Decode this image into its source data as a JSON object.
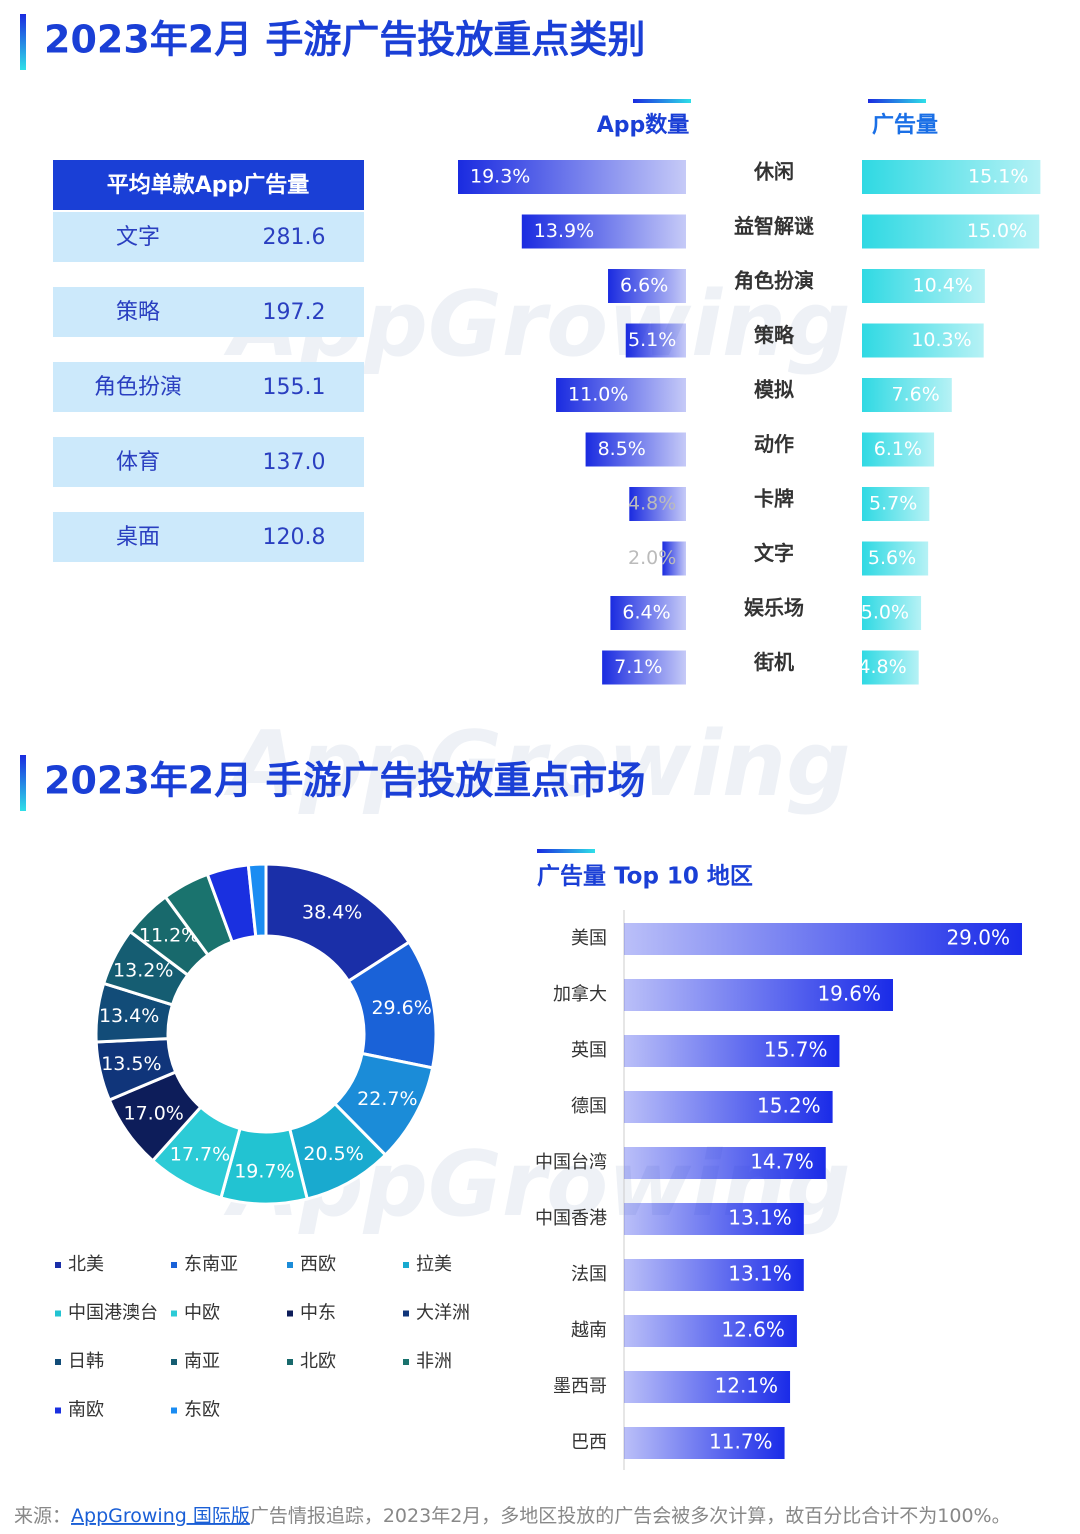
{
  "sections": [
    {
      "title": "2023年2月 手游广告投放重点类别"
    },
    {
      "title": "2023年2月 手游广告投放重点市场"
    }
  ],
  "watermark": "AppGrowing",
  "table": {
    "header": "平均单款App广告量",
    "rows": [
      [
        "文字",
        "281.6"
      ],
      [
        "策略",
        "197.2"
      ],
      [
        "角色扮演",
        "155.1"
      ],
      [
        "体育",
        "137.0"
      ],
      [
        "桌面",
        "120.8"
      ]
    ]
  },
  "chart_data": [
    {
      "type": "butterfly",
      "categories": [
        "休闲",
        "益智解谜",
        "角色扮演",
        "策略",
        "模拟",
        "动作",
        "卡牌",
        "文字",
        "娱乐场",
        "街机"
      ],
      "series": [
        {
          "name": "App数量",
          "color": "#1a2be0",
          "values": [
            19.3,
            13.9,
            6.6,
            5.1,
            11.0,
            8.5,
            4.8,
            2.0,
            6.4,
            7.1
          ],
          "value_labels": [
            "19.3%",
            "13.9%",
            "6.6%",
            "5.1%",
            "11.0%",
            "8.5%",
            "4.8%",
            "2.0%",
            "6.4%",
            "7.1%"
          ]
        },
        {
          "name": "广告量",
          "color": "#2fd9e3",
          "values": [
            15.1,
            15.0,
            10.4,
            10.3,
            7.6,
            6.1,
            5.7,
            5.6,
            5.0,
            4.8
          ],
          "value_labels": [
            "15.1%",
            "15.0%",
            "10.4%",
            "10.3%",
            "7.6%",
            "6.1%",
            "5.7%",
            "5.6%",
            "5.0%",
            "4.8%"
          ]
        }
      ]
    },
    {
      "type": "donut",
      "categories": [
        "北美",
        "东南亚",
        "西欧",
        "拉美",
        "中国港澳台",
        "中欧",
        "中东",
        "大洋洲",
        "日韩",
        "南亚",
        "北欧",
        "非洲",
        "南欧",
        "东欧"
      ],
      "values": [
        38.4,
        29.6,
        22.7,
        20.5,
        19.7,
        17.7,
        17.0,
        13.5,
        13.4,
        13.2,
        11.2,
        10.8,
        9.5,
        4.0
      ],
      "value_labels": [
        "38.4%",
        "29.6%",
        "22.7%",
        "20.5%",
        "19.7%",
        "17.7%",
        "17.0%",
        "13.5%",
        "13.4%",
        "13.2%",
        "11.2%",
        null,
        null,
        null
      ],
      "colors": [
        "#1a2fa8",
        "#1a62d8",
        "#1b8cd8",
        "#19aacf",
        "#22c3d2",
        "#2ccbd6",
        "#0d1d5a",
        "#10357a",
        "#124c78",
        "#155d72",
        "#18696c",
        "#1a736e",
        "#1a30e0",
        "#1a8cf2"
      ]
    },
    {
      "type": "hbar",
      "title": "广告量 Top 10 地区",
      "color": "#1a2be8",
      "categories": [
        "美国",
        "加拿大",
        "英国",
        "德国",
        "中国台湾",
        "中国香港",
        "法国",
        "越南",
        "墨西哥",
        "巴西"
      ],
      "values": [
        29.0,
        19.6,
        15.7,
        15.2,
        14.7,
        13.1,
        13.1,
        12.6,
        12.1,
        11.7
      ],
      "value_labels": [
        "29.0%",
        "19.6%",
        "15.7%",
        "15.2%",
        "14.7%",
        "13.1%",
        "13.1%",
        "12.6%",
        "12.1%",
        "11.7%"
      ]
    }
  ],
  "footer": {
    "prefix": "来源：",
    "link": "AppGrowing 国际版",
    "text": "广告情报追踪，2023年2月，多地区投放的广告会被多次计算，故百分比合计不为100%。"
  }
}
